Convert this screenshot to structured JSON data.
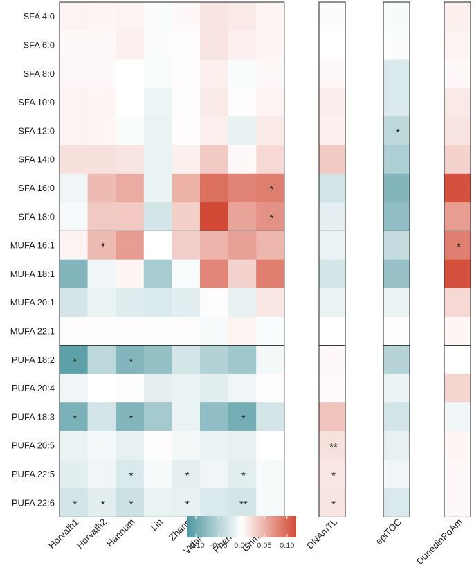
{
  "chart_data": {
    "type": "heatmap",
    "title": "",
    "rows": [
      "SFA 4:0",
      "SFA 6:0",
      "SFA 8:0",
      "SFA 10:0",
      "SFA 12:0",
      "SFA 14:0",
      "SFA 16:0",
      "SFA 18:0",
      "MUFA 16:1",
      "MUFA 18:1",
      "MUFA 20:1",
      "MUFA 22:1",
      "PUFA 18:2",
      "PUFA 20:4",
      "PUFA 18:3",
      "PUFA 20:5",
      "PUFA 22:5",
      "PUFA 22:6"
    ],
    "row_groups": [
      {
        "name": "SFA",
        "rows": [
          0,
          7
        ]
      },
      {
        "name": "MUFA",
        "rows": [
          8,
          11
        ]
      },
      {
        "name": "PUFA",
        "rows": [
          12,
          17
        ]
      }
    ],
    "panels": [
      {
        "name": "main",
        "columns": [
          "Horvath1",
          "Horvath2",
          "Hannum",
          "Lin",
          "Zhang",
          "Vidal-Bralo",
          "PhenoAge",
          "GrimAge2"
        ],
        "values": [
          [
            0.008,
            0.006,
            0.008,
            -0.003,
            0.004,
            0.018,
            0.014,
            0.006
          ],
          [
            0.004,
            0.004,
            0.01,
            -0.003,
            0.002,
            0.018,
            0.01,
            0.006
          ],
          [
            0.005,
            0.004,
            0.0,
            -0.004,
            0.002,
            0.01,
            -0.004,
            0.004
          ],
          [
            0.008,
            0.006,
            0.0,
            -0.012,
            0.002,
            0.014,
            0.002,
            0.008
          ],
          [
            0.008,
            0.006,
            -0.004,
            -0.014,
            0.002,
            0.01,
            -0.015,
            0.014
          ],
          [
            0.02,
            0.02,
            0.018,
            -0.014,
            0.01,
            0.035,
            0.004,
            0.025
          ],
          [
            -0.01,
            0.045,
            0.055,
            -0.014,
            0.052,
            0.095,
            0.082,
            0.085
          ],
          [
            -0.006,
            0.036,
            0.036,
            -0.03,
            0.032,
            0.12,
            0.06,
            0.072
          ],
          [
            0.008,
            0.045,
            0.065,
            0.0,
            0.032,
            0.05,
            0.062,
            0.048
          ],
          [
            -0.085,
            -0.01,
            0.006,
            -0.06,
            -0.004,
            0.08,
            0.03,
            0.085
          ],
          [
            -0.03,
            -0.014,
            -0.022,
            -0.025,
            -0.02,
            0.002,
            -0.015,
            0.016
          ],
          [
            0.002,
            0.002,
            0.002,
            -0.002,
            0.002,
            -0.006,
            0.008,
            -0.004
          ],
          [
            -0.11,
            -0.045,
            -0.085,
            -0.072,
            -0.03,
            -0.052,
            -0.065,
            -0.008
          ],
          [
            -0.01,
            0.0,
            -0.002,
            -0.018,
            -0.014,
            -0.02,
            -0.01,
            0.002
          ],
          [
            -0.09,
            -0.03,
            -0.085,
            -0.062,
            -0.014,
            -0.075,
            -0.095,
            -0.03
          ],
          [
            -0.014,
            -0.008,
            -0.016,
            0.002,
            -0.008,
            -0.014,
            -0.016,
            0.0
          ],
          [
            -0.02,
            -0.01,
            -0.025,
            -0.006,
            -0.018,
            -0.01,
            -0.02,
            -0.006
          ],
          [
            -0.03,
            -0.02,
            -0.035,
            -0.014,
            -0.016,
            -0.025,
            -0.03,
            -0.006
          ]
        ],
        "significance": [
          [
            "",
            "",
            "",
            "",
            "",
            "",
            "",
            ""
          ],
          [
            "",
            "",
            "",
            "",
            "",
            "",
            "",
            ""
          ],
          [
            "",
            "",
            "",
            "",
            "",
            "",
            "",
            ""
          ],
          [
            "",
            "",
            "",
            "",
            "",
            "",
            "",
            ""
          ],
          [
            "",
            "",
            "",
            "",
            "",
            "",
            "",
            ""
          ],
          [
            "",
            "",
            "",
            "",
            "",
            "",
            "",
            ""
          ],
          [
            "",
            "",
            "",
            "",
            "",
            "",
            "",
            "*"
          ],
          [
            "",
            "",
            "",
            "",
            "",
            "",
            "",
            "*"
          ],
          [
            "",
            "*",
            "",
            "",
            "",
            "",
            "",
            ""
          ],
          [
            "",
            "",
            "",
            "",
            "",
            "",
            "",
            ""
          ],
          [
            "",
            "",
            "",
            "",
            "",
            "",
            "",
            ""
          ],
          [
            "",
            "",
            "",
            "",
            "",
            "",
            "",
            ""
          ],
          [
            "*",
            "",
            "*",
            "",
            "",
            "",
            "",
            ""
          ],
          [
            "",
            "",
            "",
            "",
            "",
            "",
            "",
            ""
          ],
          [
            "*",
            "",
            "*",
            "",
            "",
            "",
            "*",
            ""
          ],
          [
            "",
            "",
            "",
            "",
            "",
            "",
            "",
            ""
          ],
          [
            "",
            "",
            "*",
            "",
            "*",
            "",
            "*",
            ""
          ],
          [
            "*",
            "*",
            "*",
            "",
            "*",
            "",
            "**",
            ""
          ]
        ]
      },
      {
        "name": "DNAmTL",
        "columns": [
          "DNAmTL"
        ],
        "values": [
          [
            -0.003
          ],
          [
            0.0
          ],
          [
            0.004
          ],
          [
            0.012
          ],
          [
            0.01
          ],
          [
            0.035
          ],
          [
            -0.03
          ],
          [
            -0.018
          ],
          [
            -0.014
          ],
          [
            -0.03
          ],
          [
            -0.014
          ],
          [
            0.0
          ],
          [
            0.005
          ],
          [
            0.003
          ],
          [
            0.04
          ],
          [
            0.02
          ],
          [
            0.016
          ],
          [
            0.018
          ]
        ],
        "significance": [
          [
            ""
          ],
          [
            ""
          ],
          [
            ""
          ],
          [
            ""
          ],
          [
            ""
          ],
          [
            ""
          ],
          [
            ""
          ],
          [
            ""
          ],
          [
            ""
          ],
          [
            ""
          ],
          [
            ""
          ],
          [
            ""
          ],
          [
            ""
          ],
          [
            ""
          ],
          [
            ""
          ],
          [
            "**"
          ],
          [
            "*"
          ],
          [
            "*"
          ]
        ]
      },
      {
        "name": "epiTOC",
        "columns": [
          "epiTOC"
        ],
        "values": [
          [
            -0.005
          ],
          [
            -0.003
          ],
          [
            -0.025
          ],
          [
            -0.025
          ],
          [
            -0.045
          ],
          [
            -0.055
          ],
          [
            -0.085
          ],
          [
            -0.075
          ],
          [
            -0.04
          ],
          [
            -0.07
          ],
          [
            -0.014
          ],
          [
            0.002
          ],
          [
            -0.05
          ],
          [
            -0.014
          ],
          [
            -0.03
          ],
          [
            -0.016
          ],
          [
            -0.01
          ],
          [
            -0.025
          ]
        ],
        "significance": [
          [
            ""
          ],
          [
            ""
          ],
          [
            ""
          ],
          [
            ""
          ],
          [
            "*"
          ],
          [
            ""
          ],
          [
            ""
          ],
          [
            ""
          ],
          [
            ""
          ],
          [
            ""
          ],
          [
            ""
          ],
          [
            ""
          ],
          [
            ""
          ],
          [
            ""
          ],
          [
            ""
          ],
          [
            ""
          ],
          [
            ""
          ],
          [
            ""
          ]
        ]
      },
      {
        "name": "DunedinPoAm",
        "columns": [
          "DunedinPoAm"
        ],
        "values": [
          [
            0.01
          ],
          [
            0.008
          ],
          [
            0.004
          ],
          [
            0.014
          ],
          [
            0.018
          ],
          [
            0.03
          ],
          [
            0.115
          ],
          [
            0.065
          ],
          [
            0.085
          ],
          [
            0.115
          ],
          [
            0.025
          ],
          [
            0.006
          ],
          [
            0.0
          ],
          [
            0.028
          ],
          [
            -0.01
          ],
          [
            0.006
          ],
          [
            0.004
          ],
          [
            0.004
          ]
        ],
        "significance": [
          [
            ""
          ],
          [
            ""
          ],
          [
            ""
          ],
          [
            ""
          ],
          [
            ""
          ],
          [
            ""
          ],
          [
            ""
          ],
          [
            ""
          ],
          [
            "*"
          ],
          [
            ""
          ],
          [
            ""
          ],
          [
            ""
          ],
          [
            ""
          ],
          [
            ""
          ],
          [
            ""
          ],
          [
            ""
          ],
          [
            ""
          ],
          [
            ""
          ]
        ]
      }
    ],
    "legend": {
      "range": [
        -0.12,
        0.12
      ],
      "ticks": [
        -0.1,
        -0.05,
        0.0,
        0.05,
        0.1
      ],
      "tick_labels": [
        "-0.10",
        "-0.05",
        "0.00",
        "0.05",
        "0.10"
      ],
      "low_color": "#4f97a0",
      "mid_color": "#ffffff",
      "high_color": "#d24a35"
    }
  }
}
